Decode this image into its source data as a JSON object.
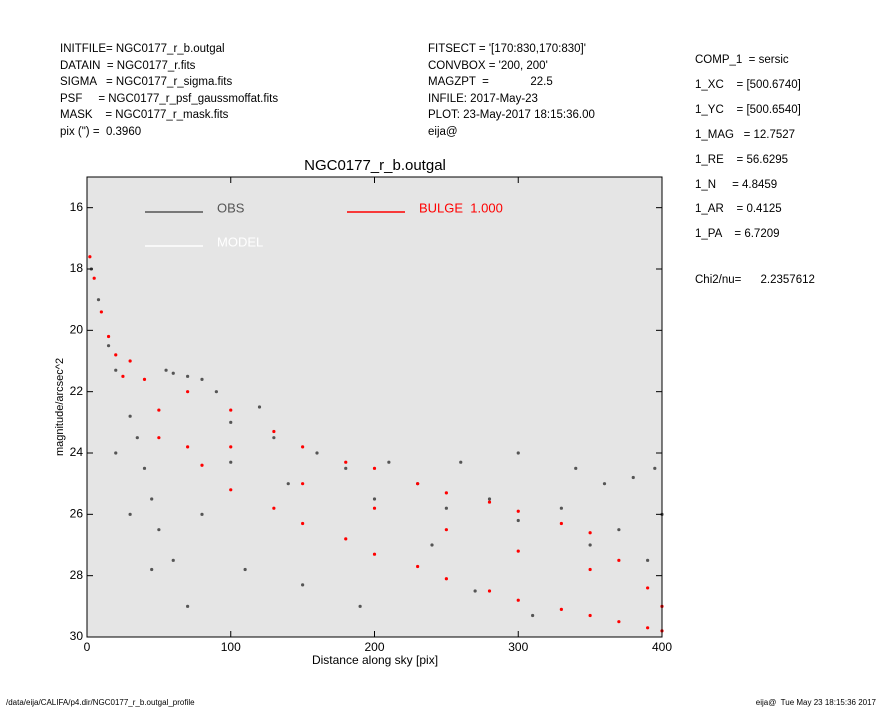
{
  "header": {
    "left": [
      "INITFILE= NGC0177_r_b.outgal",
      "DATAIN  = NGC0177_r.fits",
      "SIGMA   = NGC0177_r_sigma.fits",
      "PSF     = NGC0177_r_psf_gaussmoffat.fits",
      "MASK    = NGC0177_r_mask.fits",
      "pix (\") =  0.3960"
    ],
    "middle": [
      "FITSECT = '[170:830,170:830]'",
      "CONVBOX = '200, 200'",
      "MAGZPT  =             22.5",
      "INFILE: 2017-May-23",
      "PLOT: 23-May-2017 18:15:36.00",
      "eija@"
    ],
    "right": [
      "COMP_1  = sersic",
      "1_XC    = [500.6740]",
      "1_YC    = [500.6540]",
      "1_MAG   = 12.7527",
      "1_RE    = 56.6295",
      "1_N     = 4.8459",
      "1_AR    = 0.4125",
      "1_PA    = 6.7209"
    ],
    "chi2": "Chi2/nu=      2.2357612"
  },
  "footer": {
    "left": "/data/eija/CALIFA/p4.dir/NGC0177_r_b.outgal_profile",
    "right": "eija@  Tue May 23 18:15:36 2017"
  },
  "chart_data": {
    "type": "scatter",
    "title": "NGC0177_r_b.outgal",
    "x_label": "Distance along sky [pix]",
    "y_label": "magnitude/arcsec^2",
    "xlim": [
      0,
      400
    ],
    "ylim": [
      30,
      15
    ],
    "xticks": [
      0,
      100,
      200,
      300,
      400
    ],
    "yticks": [
      16,
      18,
      20,
      22,
      24,
      26,
      28,
      30
    ],
    "series": [
      {
        "name": "OBS",
        "color": "#555555",
        "x": [
          3,
          8,
          15,
          20,
          30,
          35,
          40,
          45,
          50,
          55,
          60,
          70,
          80,
          90,
          60,
          80,
          100,
          100,
          110,
          120,
          130,
          140,
          150,
          160,
          180,
          190,
          200,
          210,
          230,
          240,
          250,
          260,
          270,
          280,
          300,
          300,
          310,
          330,
          340,
          350,
          360,
          370,
          380,
          390,
          395,
          400,
          20,
          30,
          45,
          70
        ],
        "y": [
          18.0,
          19.0,
          20.5,
          21.3,
          22.8,
          23.5,
          24.5,
          25.5,
          26.5,
          21.3,
          21.4,
          21.5,
          21.6,
          22.0,
          27.5,
          26.0,
          23.0,
          24.3,
          27.8,
          22.5,
          23.5,
          25.0,
          28.3,
          24.0,
          24.5,
          29.0,
          25.5,
          24.3,
          25.0,
          27.0,
          25.8,
          24.3,
          28.5,
          25.5,
          24.0,
          26.2,
          29.3,
          25.8,
          24.5,
          27.0,
          25.0,
          26.5,
          24.8,
          27.5,
          24.5,
          26.0,
          24.0,
          26.0,
          27.8,
          29.0
        ]
      },
      {
        "name": "MODEL",
        "color": "#ffffff",
        "x": [],
        "y": []
      },
      {
        "name": "BULGE  1.000",
        "color": "#ff0000",
        "x": [
          2,
          5,
          10,
          15,
          20,
          25,
          30,
          40,
          50,
          50,
          70,
          70,
          80,
          100,
          100,
          100,
          130,
          130,
          150,
          150,
          150,
          180,
          180,
          200,
          200,
          200,
          230,
          230,
          250,
          250,
          250,
          280,
          280,
          300,
          300,
          300,
          330,
          330,
          350,
          350,
          350,
          370,
          370,
          390,
          390,
          400,
          400
        ],
        "y": [
          17.6,
          18.3,
          19.4,
          20.2,
          20.8,
          21.5,
          21.0,
          21.6,
          22.6,
          23.5,
          22.0,
          23.8,
          24.4,
          22.6,
          23.8,
          25.2,
          23.3,
          25.8,
          23.8,
          25.0,
          26.3,
          24.3,
          26.8,
          24.5,
          25.8,
          27.3,
          25.0,
          27.7,
          25.3,
          26.5,
          28.1,
          25.6,
          28.5,
          25.9,
          27.2,
          28.8,
          26.3,
          29.1,
          26.6,
          27.8,
          29.3,
          27.5,
          29.5,
          28.4,
          29.7,
          29.0,
          29.8
        ]
      }
    ]
  }
}
